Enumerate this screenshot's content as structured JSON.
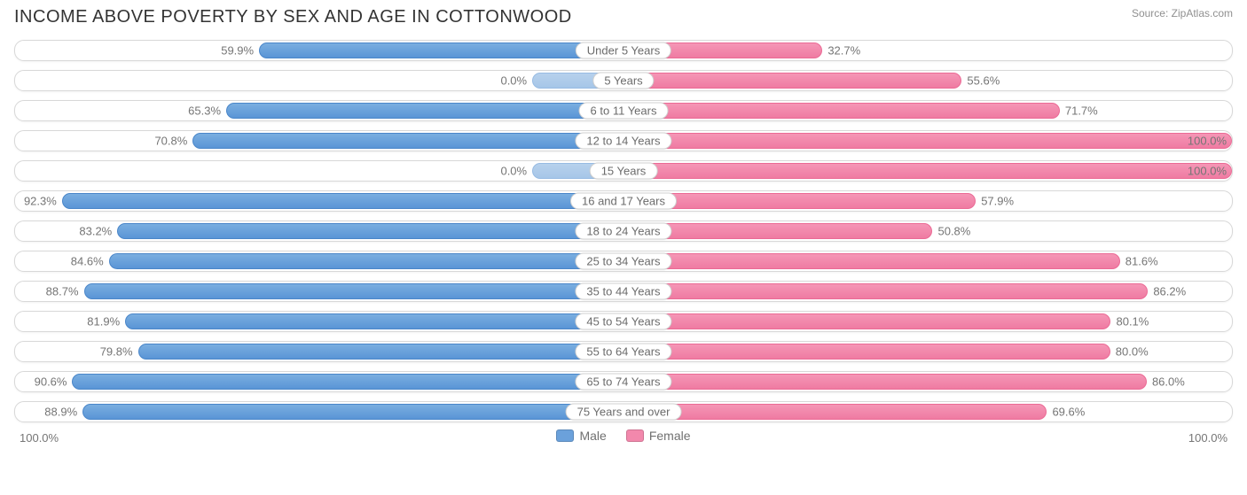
{
  "title": "INCOME ABOVE POVERTY BY SEX AND AGE IN COTTONWOOD",
  "source": "Source: ZipAtlas.com",
  "axis": {
    "left": "100.0%",
    "right": "100.0%"
  },
  "legend": {
    "male": {
      "label": "Male",
      "color": "#6ba1db"
    },
    "female": {
      "label": "Female",
      "color": "#f288ac"
    }
  },
  "colors": {
    "male_bar_top": "#7aaee0",
    "male_bar_bottom": "#5a95d6",
    "male_faded_top": "#b7d1ec",
    "male_faded_bottom": "#a6c6e8",
    "female_bar_top": "#f596b6",
    "female_bar_bottom": "#ef7ba2",
    "row_border": "#d8d8d8",
    "text": "#757575",
    "title_text": "#333333",
    "background": "#ffffff"
  },
  "chart": {
    "type": "diverging-bar",
    "male_direction": "left",
    "female_direction": "right",
    "min_bar_pct": 15,
    "rows": [
      {
        "category": "Under 5 Years",
        "male": 59.9,
        "male_label": "59.9%",
        "female": 32.7,
        "female_label": "32.7%"
      },
      {
        "category": "5 Years",
        "male": 0.0,
        "male_label": "0.0%",
        "male_faded": true,
        "female": 55.6,
        "female_label": "55.6%"
      },
      {
        "category": "6 to 11 Years",
        "male": 65.3,
        "male_label": "65.3%",
        "female": 71.7,
        "female_label": "71.7%"
      },
      {
        "category": "12 to 14 Years",
        "male": 70.8,
        "male_label": "70.8%",
        "female": 100.0,
        "female_label": "100.0%"
      },
      {
        "category": "15 Years",
        "male": 0.0,
        "male_label": "0.0%",
        "male_faded": true,
        "female": 100.0,
        "female_label": "100.0%"
      },
      {
        "category": "16 and 17 Years",
        "male": 92.3,
        "male_label": "92.3%",
        "female": 57.9,
        "female_label": "57.9%"
      },
      {
        "category": "18 to 24 Years",
        "male": 83.2,
        "male_label": "83.2%",
        "female": 50.8,
        "female_label": "50.8%"
      },
      {
        "category": "25 to 34 Years",
        "male": 84.6,
        "male_label": "84.6%",
        "female": 81.6,
        "female_label": "81.6%"
      },
      {
        "category": "35 to 44 Years",
        "male": 88.7,
        "male_label": "88.7%",
        "female": 86.2,
        "female_label": "86.2%"
      },
      {
        "category": "45 to 54 Years",
        "male": 81.9,
        "male_label": "81.9%",
        "female": 80.1,
        "female_label": "80.1%"
      },
      {
        "category": "55 to 64 Years",
        "male": 79.8,
        "male_label": "79.8%",
        "female": 80.0,
        "female_label": "80.0%"
      },
      {
        "category": "65 to 74 Years",
        "male": 90.6,
        "male_label": "90.6%",
        "female": 86.0,
        "female_label": "86.0%"
      },
      {
        "category": "75 Years and over",
        "male": 88.9,
        "male_label": "88.9%",
        "female": 69.6,
        "female_label": "69.6%"
      }
    ]
  }
}
